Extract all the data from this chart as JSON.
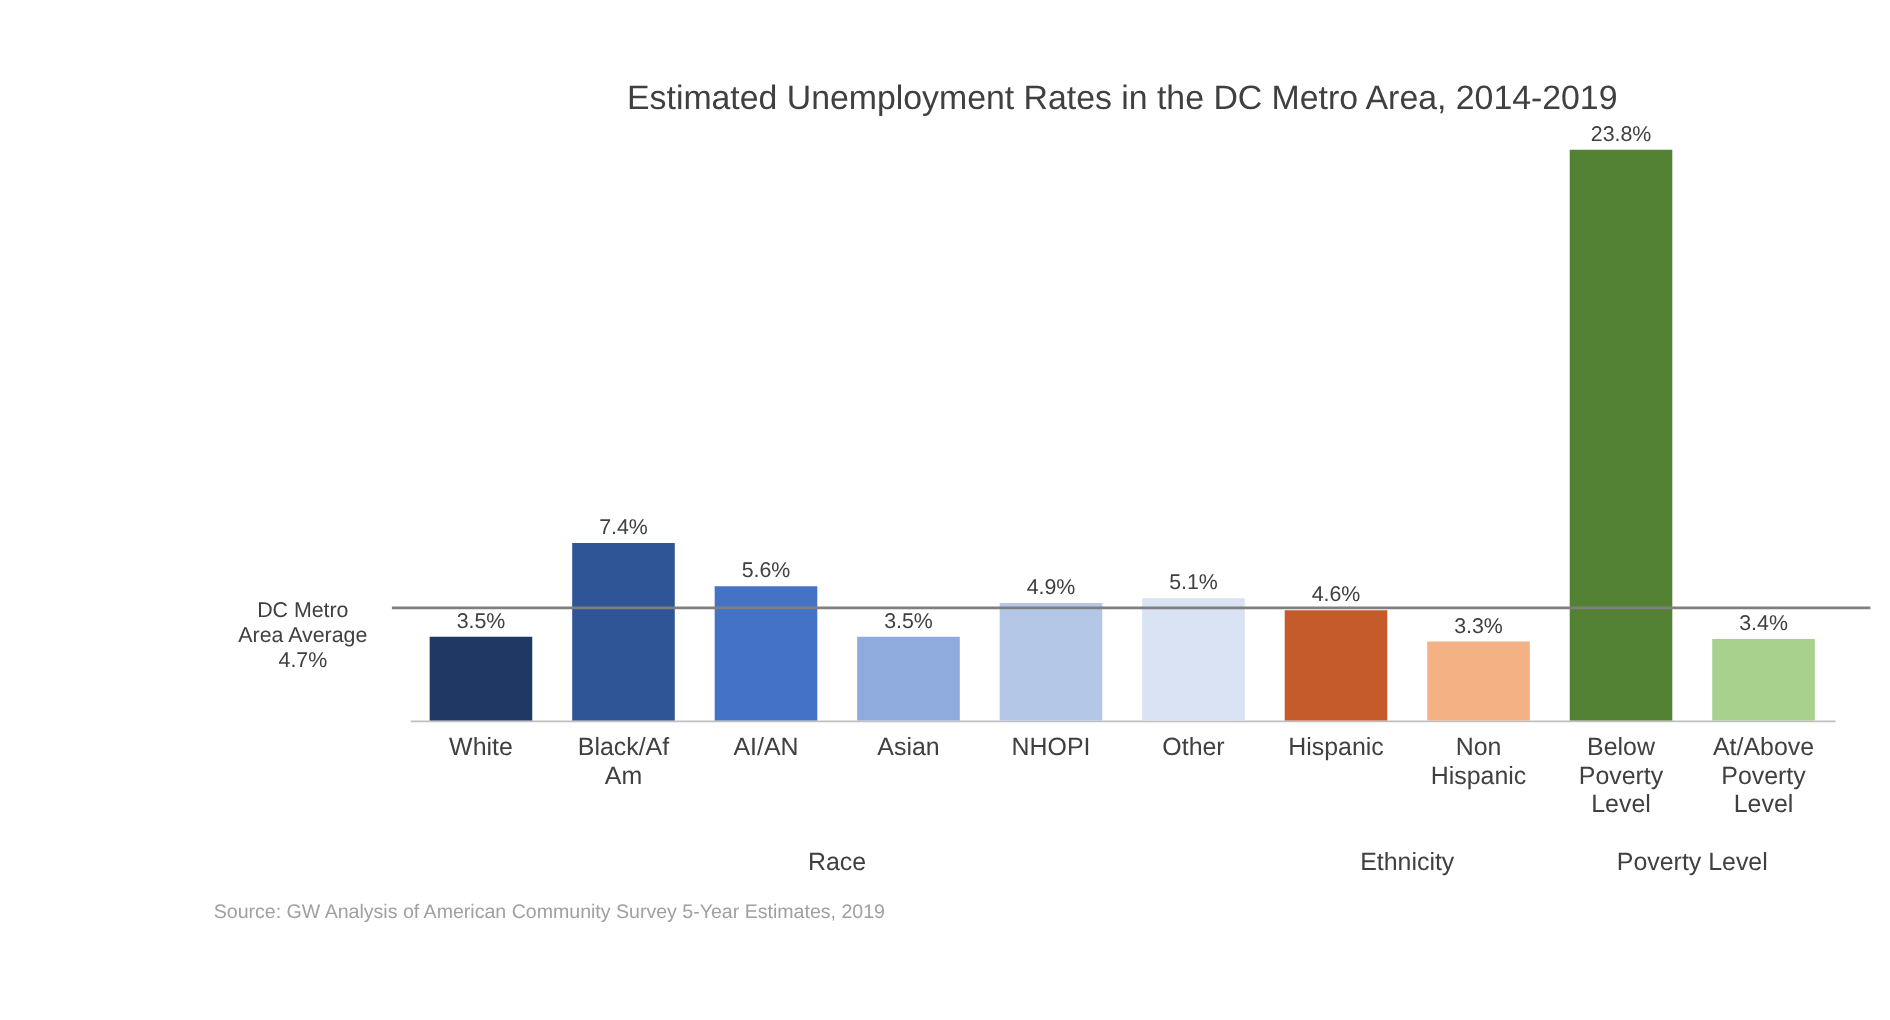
{
  "chart_data": {
    "type": "bar",
    "title": "Estimated Unemployment Rates in the DC Metro Area, 2014-2019",
    "categories": [
      "White",
      "Black/Af Am",
      "AI/AN",
      "Asian",
      "NHOPI",
      "Other",
      "Hispanic",
      "Non Hispanic",
      "Below Poverty Level",
      "At/Above Poverty Level"
    ],
    "values": [
      3.5,
      7.4,
      5.6,
      3.5,
      4.9,
      5.1,
      4.6,
      3.3,
      23.8,
      3.4
    ],
    "value_labels": [
      "3.5%",
      "7.4%",
      "5.6%",
      "3.5%",
      "4.9%",
      "5.1%",
      "4.6%",
      "3.3%",
      "23.8%",
      "3.4%"
    ],
    "colors": [
      "#203864",
      "#2f5597",
      "#4472c4",
      "#8faadc",
      "#b4c7e7",
      "#dae3f3",
      "#c55a2b",
      "#f4b183",
      "#548235",
      "#a9d18e"
    ],
    "ref_lines": [
      {
        "axis": "y",
        "value": 4.7,
        "label": "DC Metro\nArea Average\n4.7%",
        "color": "#7f7f7f"
      }
    ],
    "annotations": [
      "Race",
      "Ethnicity",
      "Poverty Level",
      "Source: GW Analysis of American Community Survey 5-Year Estimates, 2019"
    ],
    "grid": false
  }
}
